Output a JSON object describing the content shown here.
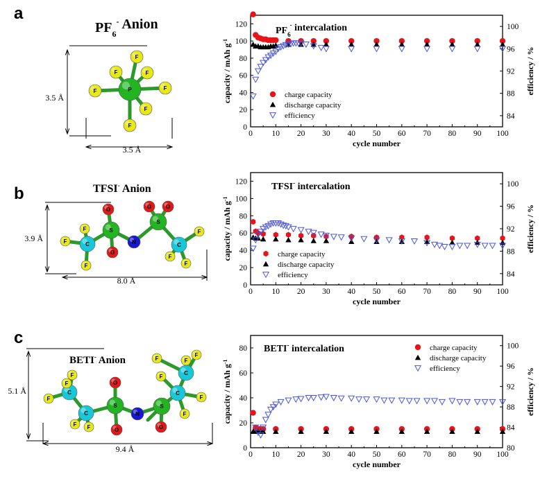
{
  "panels": [
    {
      "letter": "a",
      "molecule": {
        "title": "PF",
        "title_sub": "6",
        "title_sup": "-",
        "title_rest": " Anion",
        "dims": [
          "3.5 Å",
          "3.5 Å"
        ]
      }
    },
    {
      "letter": "b",
      "molecule": {
        "title": "TFSI",
        "title_sup": "-",
        "title_rest": " Anion",
        "dims": [
          "3.9 Å",
          "8.0 Å"
        ]
      }
    },
    {
      "letter": "c",
      "molecule": {
        "title": "BETI",
        "title_sup": "-",
        "title_rest": " Anion",
        "dims": [
          "5.1 Å",
          "9.4 Å"
        ]
      }
    }
  ],
  "colors": {
    "charge": "#e8141b",
    "discharge": "#000000",
    "efficiency": "#4a55d8",
    "atom_F": "#e8e818",
    "atom_P": "#22b422",
    "atom_S": "#22b422",
    "atom_C": "#18c8d8",
    "atom_O": "#e01818",
    "atom_N": "#1818d0"
  },
  "chart_data": [
    {
      "type": "scatter",
      "title": "PF",
      "title_sub": "6",
      "title_sup": "-",
      "title_rest": " intercalation",
      "xlabel": "cycle number",
      "ylabel": "capacity / mAh g",
      "ylabel_sup": "-1",
      "y2label": "efficiency / %",
      "xlim": [
        0,
        100
      ],
      "ylim": [
        0,
        130
      ],
      "y2lim": [
        82,
        102
      ],
      "xticks": [
        0,
        10,
        20,
        30,
        40,
        50,
        60,
        70,
        80,
        90,
        100
      ],
      "yticks": [
        0,
        20,
        40,
        60,
        80,
        100,
        120
      ],
      "y2ticks": [
        84,
        88,
        92,
        96,
        100
      ],
      "legend": [
        "charge capacity",
        "discharge capacity",
        "efficiency"
      ],
      "legend_position": "middle-left",
      "series": [
        {
          "name": "charge capacity",
          "marker": "circle",
          "x": [
            1,
            2,
            3,
            4,
            5,
            6,
            7,
            8,
            9,
            10,
            15,
            20,
            25,
            30,
            40,
            50,
            60,
            70,
            80,
            90,
            100
          ],
          "y": [
            131,
            107,
            104,
            103,
            102,
            102,
            101,
            101,
            101,
            101,
            100,
            100,
            100,
            100,
            100,
            100,
            100,
            100,
            100,
            100,
            100
          ]
        },
        {
          "name": "discharge capacity",
          "marker": "triangle",
          "x": [
            1,
            2,
            3,
            4,
            5,
            6,
            7,
            8,
            9,
            10,
            15,
            20,
            25,
            30,
            40,
            50,
            60,
            70,
            80,
            90,
            100
          ],
          "y": [
            96,
            94,
            94,
            93,
            93,
            93,
            93,
            94,
            94,
            95,
            96,
            96,
            96,
            96,
            96,
            96,
            96,
            96,
            96,
            96,
            96
          ]
        },
        {
          "name": "efficiency",
          "marker": "triangle-down",
          "x": [
            1,
            2,
            3,
            4,
            5,
            6,
            7,
            8,
            9,
            10,
            11,
            12,
            13,
            14,
            15,
            16,
            17,
            18,
            19,
            20,
            22,
            25,
            28,
            30,
            40,
            50,
            60,
            70,
            80,
            90,
            100
          ],
          "y": [
            87.5,
            90.5,
            92.0,
            92.8,
            93.5,
            94.0,
            94.5,
            94.8,
            95.2,
            95.5,
            96.0,
            96.3,
            96.5,
            96.7,
            96.8,
            96.9,
            97.0,
            97.0,
            97.0,
            97.0,
            96.8,
            96.5,
            96.2,
            96.0,
            96.0,
            96.0,
            96.0,
            96.0,
            96.0,
            96.0,
            96.0
          ]
        }
      ]
    },
    {
      "type": "scatter",
      "title": "TFSI",
      "title_sup": "-",
      "title_rest": " intercalation",
      "xlabel": "cycle number",
      "ylabel": "capacity / mAh g",
      "ylabel_sup": "-1",
      "y2label": "efficiency / %",
      "xlim": [
        0,
        100
      ],
      "ylim": [
        0,
        130
      ],
      "y2lim": [
        82,
        102
      ],
      "xticks": [
        0,
        10,
        20,
        30,
        40,
        50,
        60,
        70,
        80,
        90,
        100
      ],
      "yticks": [
        0,
        20,
        40,
        60,
        80,
        100,
        120
      ],
      "y2ticks": [
        84,
        88,
        92,
        96,
        100
      ],
      "legend": [
        "charge capacity",
        "discharge capacity",
        "efficiency"
      ],
      "legend_position": "bottom-left",
      "series": [
        {
          "name": "charge capacity",
          "marker": "hexagon",
          "x": [
            1,
            2,
            3,
            5,
            10,
            15,
            20,
            25,
            30,
            40,
            50,
            60,
            70,
            80,
            90,
            100
          ],
          "y": [
            73,
            62,
            60,
            59,
            58,
            58,
            57,
            57,
            56,
            56,
            55,
            55,
            55,
            54,
            54,
            54
          ]
        },
        {
          "name": "discharge capacity",
          "marker": "triangle",
          "x": [
            1,
            2,
            3,
            5,
            10,
            15,
            20,
            25,
            30,
            40,
            50,
            60,
            70,
            80,
            90,
            100
          ],
          "y": [
            55,
            54,
            54,
            53,
            53,
            52,
            52,
            51,
            51,
            50,
            50,
            50,
            50,
            49,
            49,
            49
          ]
        },
        {
          "name": "efficiency",
          "marker": "triangle-down",
          "x": [
            1,
            2,
            3,
            4,
            5,
            6,
            7,
            8,
            9,
            10,
            11,
            12,
            13,
            14,
            15,
            17,
            20,
            23,
            25,
            28,
            30,
            33,
            36,
            40,
            45,
            50,
            55,
            60,
            65,
            70,
            73,
            75,
            77,
            80,
            83,
            86,
            90,
            93,
            96,
            100
          ],
          "y": [
            88.5,
            90,
            91,
            91.5,
            92,
            92.3,
            92.5,
            92.8,
            93,
            93,
            93,
            92.8,
            92.6,
            92.5,
            92.3,
            92.0,
            91.8,
            91.5,
            91.3,
            91.0,
            90.8,
            90.6,
            90.5,
            90.3,
            90.2,
            90.0,
            90.0,
            89.8,
            89.8,
            89.5,
            89.2,
            89.0,
            88.8,
            88.8,
            89.0,
            89.0,
            89.2,
            89.0,
            89.0,
            89.0
          ]
        }
      ]
    },
    {
      "type": "scatter",
      "title": "BETI",
      "title_sup": "-",
      "title_rest": " intercalation",
      "xlabel": "cycle number",
      "ylabel": "capacity / mAh g",
      "ylabel_sup": "-1",
      "y2label": "efficiency / %",
      "xlim": [
        0,
        100
      ],
      "ylim": [
        0,
        90
      ],
      "y2lim": [
        80,
        102
      ],
      "xticks": [
        0,
        10,
        20,
        30,
        40,
        50,
        60,
        70,
        80,
        90,
        100
      ],
      "yticks": [
        0,
        20,
        40,
        60,
        80
      ],
      "y2ticks": [
        80,
        84,
        88,
        92,
        96,
        100
      ],
      "legend": [
        "charge capacity",
        "discharge capacity",
        "efficiency"
      ],
      "legend_position": "top-right",
      "series": [
        {
          "name": "charge capacity",
          "marker": "circle",
          "x": [
            1,
            2,
            3,
            4,
            5,
            10,
            20,
            30,
            40,
            50,
            60,
            70,
            80,
            90,
            100
          ],
          "y": [
            28,
            16,
            15,
            15,
            15,
            15,
            15,
            15,
            15,
            15,
            15,
            15,
            15,
            15,
            15
          ]
        },
        {
          "name": "discharge capacity",
          "marker": "triangle",
          "x": [
            1,
            2,
            3,
            4,
            5,
            10,
            20,
            30,
            40,
            50,
            60,
            70,
            80,
            90,
            100
          ],
          "y": [
            13,
            13,
            13,
            13,
            13,
            13,
            13,
            13,
            13,
            13,
            13,
            13,
            13,
            13,
            13
          ]
        },
        {
          "name": "efficiency",
          "marker": "triangle-down",
          "x": [
            2,
            3,
            4,
            5,
            6,
            7,
            8,
            9,
            10,
            12,
            15,
            18,
            20,
            23,
            25,
            28,
            30,
            33,
            36,
            40,
            43,
            46,
            50,
            53,
            56,
            60,
            63,
            66,
            70,
            73,
            76,
            80,
            83,
            86,
            90,
            93,
            96,
            100
          ],
          "y": [
            84,
            83,
            82.5,
            84,
            85.5,
            86.5,
            87.5,
            88,
            88.5,
            89,
            89.3,
            89.5,
            89.6,
            89.8,
            89.8,
            89.9,
            90,
            89.8,
            89.7,
            89.7,
            89.5,
            89.5,
            89.5,
            89.3,
            89.3,
            89.3,
            89.2,
            89.2,
            89.2,
            89.2,
            89.0,
            89.2,
            89.0,
            89.0,
            89.0,
            89.0,
            89.0,
            89.0
          ]
        }
      ]
    }
  ]
}
